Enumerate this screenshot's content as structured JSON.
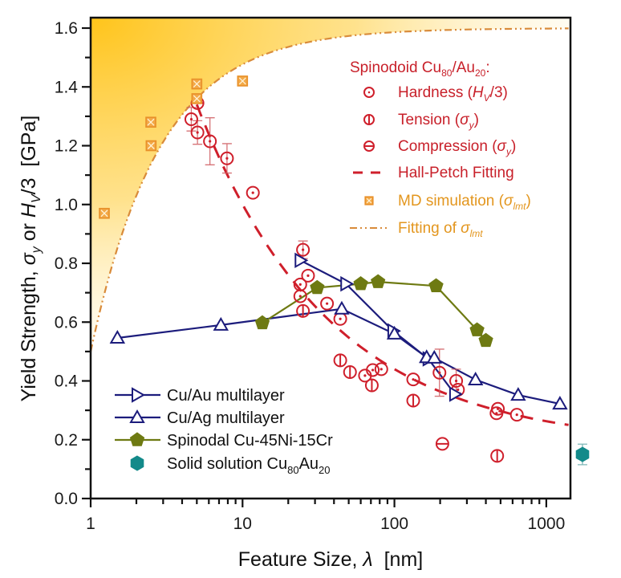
{
  "chart_data": {
    "type": "scatter",
    "title": "",
    "xlabel": "Feature Size, λ [nm]",
    "xlabel_parts": {
      "main": "Feature Size, ",
      "symbol": "λ",
      "unit": "  [nm]"
    },
    "ylabel": "Yield Strength, σy or Hv/3 [GPa]",
    "ylabel_parts": {
      "prefix": "Yield Strength, ",
      "sigma": "σ",
      "sigma_sub": "y",
      "or": " or ",
      "H": "H",
      "H_sub": "V",
      "suffix": "/3  [GPa]"
    },
    "xscale": "log",
    "xlim": [
      1,
      1400
    ],
    "ylim": [
      0,
      1.62
    ],
    "xticks": [
      1,
      10,
      100,
      1000
    ],
    "xtick_labels": [
      "1",
      "10",
      "100",
      "1000"
    ],
    "yticks": [
      0.0,
      0.2,
      0.4,
      0.6,
      0.8,
      1.0,
      1.2,
      1.4,
      1.6
    ],
    "ytick_labels": [
      "0.0",
      "0.2",
      "0.4",
      "0.6",
      "0.8",
      "1.0",
      "1.2",
      "1.4",
      "1.6"
    ],
    "grid": false,
    "colors": {
      "spinodoid": "#cf1f2b",
      "md": "#e8902a",
      "fit_lmt": "#d98b3a",
      "shade": "#ffc41a",
      "cu_au": "#1c1c7c",
      "cu_ag": "#1c1c7c",
      "spinodal": "#6e7a12",
      "solid": "#138a8a"
    },
    "series": [
      {
        "name": "Hardness (Hv/3)",
        "group": "spinodoid",
        "marker": "circle-dot",
        "points": [
          [
            4.6,
            1.29
          ],
          [
            5.05,
            1.245
          ],
          [
            6.1,
            1.215
          ],
          [
            7.9,
            1.157
          ],
          [
            11.7,
            1.04
          ],
          [
            25,
            0.846
          ],
          [
            27,
            0.758
          ],
          [
            24,
            0.728
          ],
          [
            24,
            0.688
          ],
          [
            36,
            0.663
          ],
          [
            44,
            0.611
          ],
          [
            64,
            0.418
          ],
          [
            72,
            0.437
          ],
          [
            82,
            0.44
          ],
          [
            133,
            0.405
          ],
          [
            198,
            0.428
          ],
          [
            255,
            0.4
          ],
          [
            262,
            0.37
          ],
          [
            480,
            0.305
          ],
          [
            470,
            0.29
          ],
          [
            640,
            0.285
          ]
        ],
        "errors": [
          [
            4.6,
            0.04
          ],
          [
            5.05,
            0.04
          ],
          [
            6.1,
            0.08
          ],
          [
            7.9,
            0.05
          ],
          [
            25,
            0.03
          ],
          [
            198,
            0.08
          ],
          [
            255,
            0.04
          ]
        ]
      },
      {
        "name": "Tension (σy)",
        "group": "spinodoid",
        "marker": "circle-bar",
        "points": [
          [
            25,
            0.638
          ],
          [
            44,
            0.47
          ],
          [
            51,
            0.43
          ],
          [
            71,
            0.385
          ],
          [
            133,
            0.333
          ],
          [
            475,
            0.145
          ]
        ]
      },
      {
        "name": "Compression (σy)",
        "group": "spinodoid",
        "marker": "circle-hbar",
        "points": [
          [
            5.05,
            1.345
          ],
          [
            207,
            0.186
          ]
        ]
      },
      {
        "name": "Hall-Petch Fitting",
        "group": "spinodoid",
        "type": "line",
        "style": "dashed",
        "model": "sigma = 0.181 + 2.592 / sqrt(lambda)",
        "x_range": [
          5,
          1400
        ]
      },
      {
        "name": "MD simulation (σlmt)",
        "group": "md",
        "marker": "square-x",
        "points": [
          [
            1.23,
            0.97
          ],
          [
            2.49,
            1.28
          ],
          [
            2.5,
            1.2
          ],
          [
            5.0,
            1.41
          ],
          [
            5.0,
            1.36
          ],
          [
            10.0,
            1.42
          ]
        ]
      },
      {
        "name": "Fitting of σlmt",
        "group": "md",
        "type": "line",
        "style": "dash-dot-dot",
        "model": "sigma = 1.6 - 1.1 / lambda^0.95",
        "x_range": [
          1,
          1400
        ]
      },
      {
        "name": "Cu/Au multilayer",
        "marker": "triangle-right",
        "type": "line+marker",
        "points": [
          [
            24,
            0.81
          ],
          [
            48,
            0.73
          ],
          [
            98,
            0.57
          ],
          [
            167,
            0.475
          ],
          [
            250,
            0.355
          ]
        ]
      },
      {
        "name": "Cu/Ag multilayer",
        "marker": "triangle-up",
        "type": "line+marker",
        "points": [
          [
            1.5,
            0.546
          ],
          [
            7.2,
            0.59
          ],
          [
            45,
            0.645
          ],
          [
            100,
            0.56
          ],
          [
            163,
            0.48
          ],
          [
            183,
            0.478
          ],
          [
            342,
            0.404
          ],
          [
            653,
            0.352
          ],
          [
            1230,
            0.322
          ]
        ]
      },
      {
        "name": "Spinodal Cu-45Ni-15Cr",
        "marker": "pentagon",
        "type": "line+marker",
        "points": [
          [
            13.5,
            0.597
          ],
          [
            31,
            0.717
          ],
          [
            60,
            0.73
          ],
          [
            78,
            0.737
          ],
          [
            188,
            0.723
          ],
          [
            350,
            0.573
          ],
          [
            400,
            0.537
          ]
        ]
      },
      {
        "name": "Solid solution Cu80Au20",
        "marker": "hexagon",
        "points": [
          [
            1730,
            0.15
          ]
        ],
        "errors": [
          [
            1730,
            0.035
          ]
        ]
      }
    ],
    "legend_top_right": {
      "header": {
        "text": "Spinodoid Cu",
        "sub1": "80",
        "mid": "/Au",
        "sub2": "20",
        "end": ":"
      },
      "entries": [
        {
          "key": "hardness",
          "text": "Hardness (",
          "ital": "H",
          "sub": "V",
          "tail": "/3)"
        },
        {
          "key": "tension",
          "text": "Tension (",
          "ital": "σ",
          "sub": "y",
          "tail": ")"
        },
        {
          "key": "compression",
          "text": "Compression (",
          "ital": "σ",
          "sub": "y",
          "tail": ")"
        },
        {
          "key": "hallpetch",
          "text": "Hall-Petch Fitting",
          "ital": "",
          "sub": "",
          "tail": ""
        },
        {
          "key": "md",
          "text": "MD simulation (",
          "ital": "σ",
          "sub": "lmt",
          "tail": ")"
        },
        {
          "key": "fitlmt",
          "text": "Fitting of ",
          "ital": "σ",
          "sub": "lmt",
          "tail": ""
        }
      ]
    },
    "legend_bottom_left": {
      "entries": [
        {
          "key": "cuau",
          "text": "Cu/Au multilayer",
          "sub1": "",
          "mid": "",
          "sub2": ""
        },
        {
          "key": "cuag",
          "text": "Cu/Ag multilayer",
          "sub1": "",
          "mid": "",
          "sub2": ""
        },
        {
          "key": "spinodal",
          "text": "Spinodal Cu-45Ni-15Cr",
          "sub1": "",
          "mid": "",
          "sub2": ""
        },
        {
          "key": "solid",
          "text": "Solid solution Cu",
          "sub1": "80",
          "mid": "Au",
          "sub2": "20"
        }
      ]
    }
  }
}
